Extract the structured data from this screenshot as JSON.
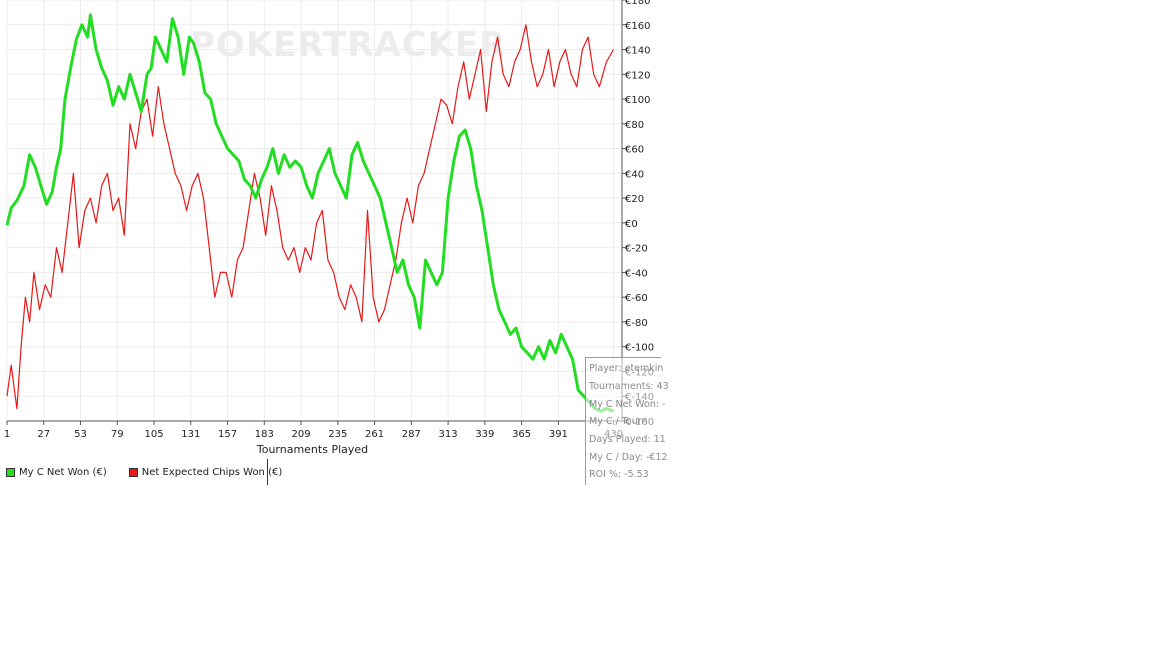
{
  "watermark": "POKERTRACKER",
  "chart_data": {
    "type": "line",
    "xlabel": "Tournaments Played",
    "ylabel": "",
    "xlim": [
      1,
      436
    ],
    "ylim": [
      -160,
      180
    ],
    "x_ticks": [
      "1",
      "27",
      "53",
      "79",
      "105",
      "131",
      "157",
      "183",
      "209",
      "235",
      "261",
      "287",
      "313",
      "339",
      "365",
      "391",
      "430"
    ],
    "y_ticks": [
      {
        "value": 180,
        "label": "€180"
      },
      {
        "value": 160,
        "label": "€160"
      },
      {
        "value": 140,
        "label": "€140"
      },
      {
        "value": 120,
        "label": "€120"
      },
      {
        "value": 100,
        "label": "€100"
      },
      {
        "value": 80,
        "label": "€80"
      },
      {
        "value": 60,
        "label": "€60"
      },
      {
        "value": 40,
        "label": "€40"
      },
      {
        "value": 20,
        "label": "€20"
      },
      {
        "value": 0,
        "label": "€0"
      },
      {
        "value": -20,
        "label": "€-20"
      },
      {
        "value": -40,
        "label": "€-40"
      },
      {
        "value": -60,
        "label": "€-60"
      },
      {
        "value": -80,
        "label": "€-80"
      },
      {
        "value": -100,
        "label": "€-100"
      },
      {
        "value": -120,
        "label": "€-120"
      },
      {
        "value": -140,
        "label": "€-140"
      },
      {
        "value": -160,
        "label": "€-160"
      }
    ],
    "grid": true,
    "legend": "bottom-left",
    "series": [
      {
        "name": "My C Net Won (€)",
        "color": "#22dd22",
        "x": [
          1,
          4,
          8,
          13,
          17,
          21,
          25,
          29,
          33,
          36,
          39,
          42,
          46,
          50,
          54,
          58,
          60,
          64,
          68,
          72,
          76,
          80,
          84,
          88,
          92,
          96,
          100,
          103,
          106,
          110,
          114,
          118,
          122,
          126,
          130,
          133,
          137,
          141,
          145,
          149,
          153,
          157,
          161,
          165,
          169,
          173,
          177,
          181,
          185,
          189,
          193,
          197,
          201,
          205,
          209,
          213,
          217,
          221,
          225,
          229,
          233,
          237,
          241,
          245,
          249,
          253,
          257,
          261,
          265,
          269,
          273,
          277,
          281,
          285,
          289,
          293,
          297,
          301,
          305,
          309,
          313,
          317,
          321,
          325,
          329,
          333,
          337,
          341,
          345,
          349,
          353,
          357,
          361,
          365,
          369,
          373,
          377,
          381,
          385,
          389,
          393,
          397,
          401,
          405,
          409,
          413,
          417,
          421,
          425,
          430
        ],
        "y": [
          -2,
          12,
          18,
          30,
          55,
          45,
          30,
          15,
          25,
          45,
          60,
          100,
          125,
          148,
          160,
          150,
          168,
          140,
          125,
          115,
          95,
          110,
          100,
          120,
          105,
          90,
          120,
          125,
          150,
          140,
          130,
          165,
          150,
          120,
          150,
          145,
          130,
          105,
          100,
          80,
          70,
          60,
          55,
          50,
          35,
          30,
          20,
          35,
          45,
          60,
          40,
          55,
          45,
          50,
          45,
          30,
          20,
          40,
          50,
          60,
          40,
          30,
          20,
          55,
          65,
          50,
          40,
          30,
          20,
          0,
          -20,
          -40,
          -30,
          -50,
          -60,
          -85,
          -30,
          -40,
          -50,
          -40,
          20,
          50,
          70,
          75,
          60,
          30,
          10,
          -20,
          -50,
          -70,
          -80,
          -90,
          -85,
          -100,
          -105,
          -110,
          -100,
          -110,
          -95,
          -105,
          -90,
          -100,
          -110,
          -135,
          -140,
          -145,
          -150,
          -152,
          -150,
          -152
        ]
      },
      {
        "name": "Net Expected Chips Won (€)",
        "color": "#e81818",
        "x": [
          1,
          4,
          8,
          11,
          14,
          17,
          20,
          24,
          28,
          32,
          36,
          40,
          44,
          48,
          52,
          56,
          60,
          64,
          68,
          72,
          76,
          80,
          84,
          88,
          92,
          96,
          100,
          104,
          108,
          112,
          116,
          120,
          124,
          128,
          132,
          136,
          140,
          144,
          148,
          152,
          156,
          160,
          164,
          168,
          172,
          176,
          180,
          184,
          188,
          192,
          196,
          200,
          204,
          208,
          212,
          216,
          220,
          224,
          228,
          232,
          236,
          240,
          244,
          248,
          252,
          256,
          260,
          264,
          268,
          272,
          276,
          280,
          284,
          288,
          292,
          296,
          300,
          304,
          308,
          312,
          316,
          320,
          324,
          328,
          332,
          336,
          340,
          344,
          348,
          352,
          356,
          360,
          364,
          368,
          372,
          376,
          380,
          384,
          388,
          392,
          396,
          400,
          404,
          408,
          412,
          416,
          420,
          425,
          430
        ],
        "y": [
          -140,
          -115,
          -150,
          -100,
          -60,
          -80,
          -40,
          -70,
          -50,
          -60,
          -20,
          -40,
          0,
          40,
          -20,
          10,
          20,
          0,
          30,
          40,
          10,
          20,
          -10,
          80,
          60,
          90,
          100,
          70,
          110,
          80,
          60,
          40,
          30,
          10,
          30,
          40,
          20,
          -20,
          -60,
          -40,
          -40,
          -60,
          -30,
          -20,
          10,
          40,
          20,
          -10,
          30,
          10,
          -20,
          -30,
          -20,
          -40,
          -20,
          -30,
          0,
          10,
          -30,
          -40,
          -60,
          -70,
          -50,
          -60,
          -80,
          10,
          -60,
          -80,
          -70,
          -50,
          -30,
          0,
          20,
          0,
          30,
          40,
          60,
          80,
          100,
          95,
          80,
          110,
          130,
          100,
          120,
          140,
          90,
          130,
          150,
          120,
          110,
          130,
          140,
          160,
          130,
          110,
          120,
          140,
          110,
          130,
          140,
          120,
          110,
          140,
          150,
          120,
          110,
          130,
          140
        ]
      }
    ]
  },
  "stats_panel": {
    "lines": [
      "Player: etemkin",
      "Tournaments: 43",
      "My C Net Won: -",
      "My C / Tourn",
      "Days Played: 11",
      "My C / Day: -€12",
      "ROI %: -5.53"
    ]
  }
}
